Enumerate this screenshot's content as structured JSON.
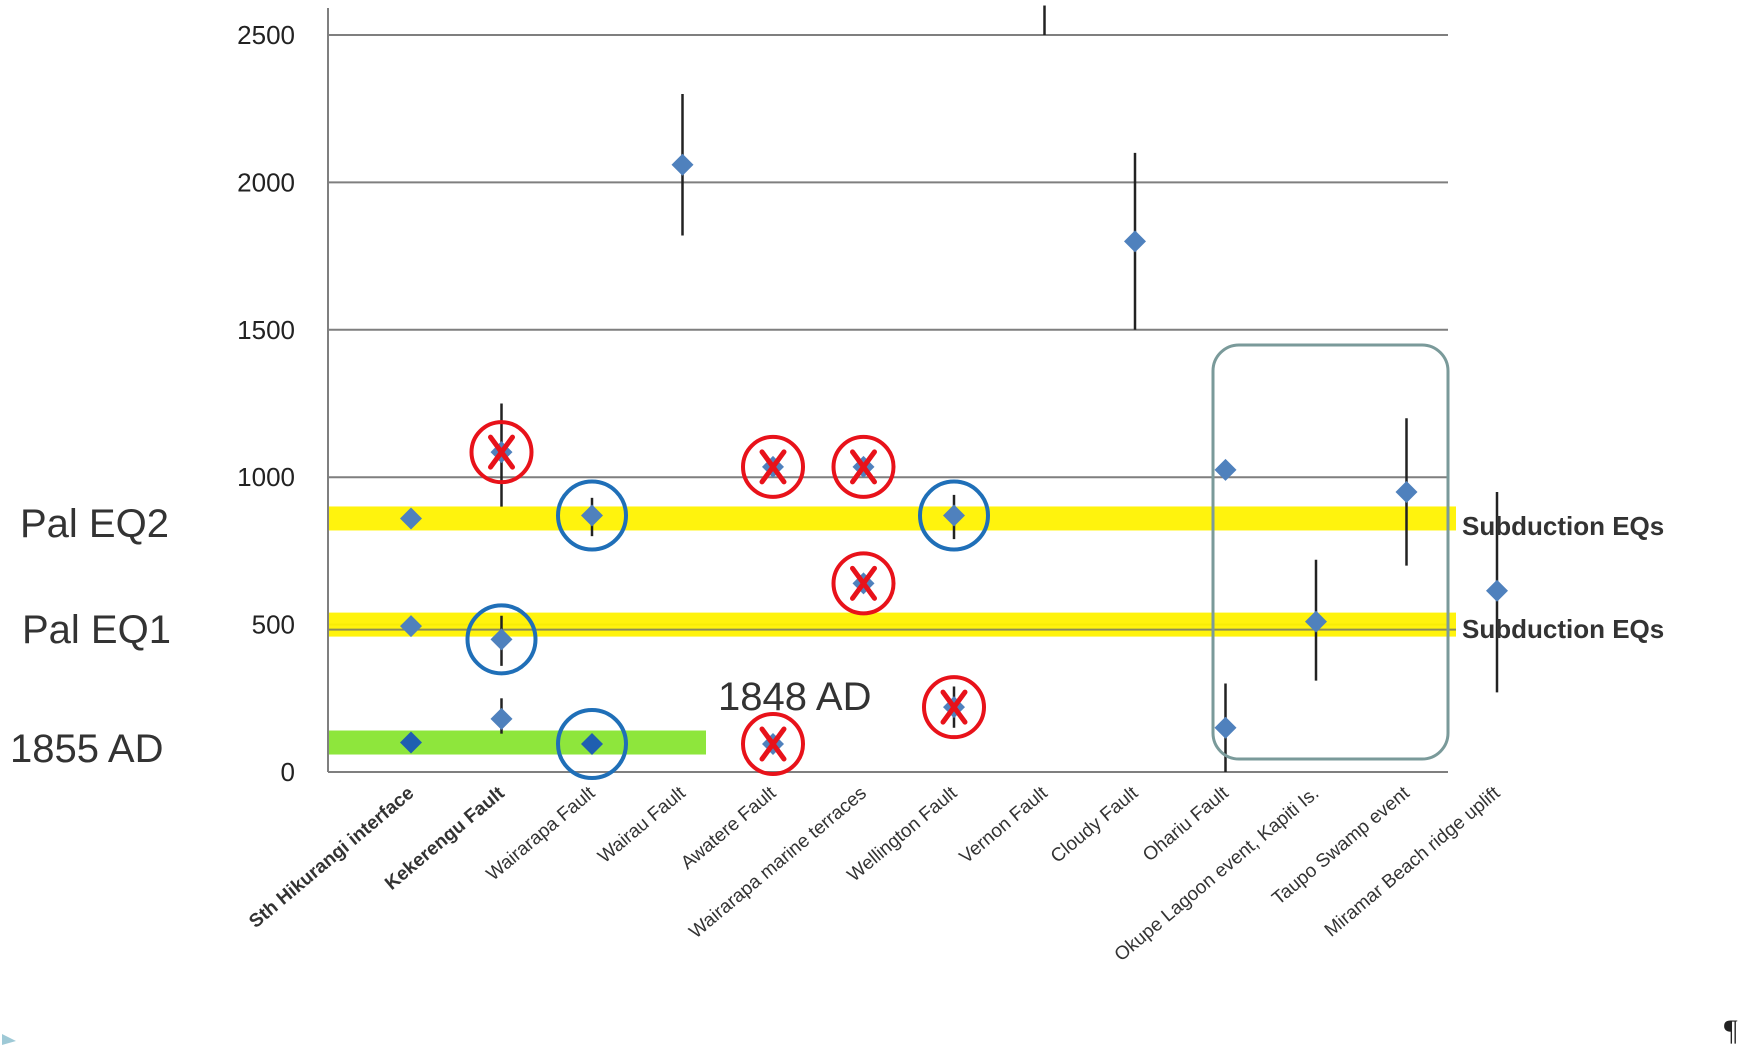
{
  "chart_data": {
    "type": "scatter",
    "ylim": [
      0,
      2600
    ],
    "y_ticks": [
      "0",
      "500",
      "1000",
      "1500",
      "2000",
      "2500"
    ],
    "y_tick_values": [
      0,
      500,
      1000,
      1500,
      2000,
      2500
    ],
    "categories": [
      "Sth Hikurangi interface",
      "Kekerengu Fault",
      "Wairarapa Fault",
      "Wairau Fault",
      "Awatere Fault",
      "Wairarapa marine terraces",
      "Wellington Fault",
      "Vernon Fault",
      "Cloudy Fault",
      "Ohariu Fault",
      "Okupe Lagoon event, Kapiti Is.",
      "Taupo Swamp event",
      "Miramar Beach ridge uplift"
    ],
    "bold_categories": [
      "Sth Hikurangi interface",
      "Kekerengu Fault"
    ],
    "points": [
      {
        "category": 0,
        "y": 860
      },
      {
        "category": 0,
        "y": 495
      },
      {
        "category": 0,
        "y": 100,
        "style": "dark"
      },
      {
        "category": 1,
        "y": 1085,
        "err": [
          900,
          1250
        ],
        "mark": "x"
      },
      {
        "category": 1,
        "y": 450,
        "err": [
          360,
          530
        ],
        "mark": "circle"
      },
      {
        "category": 1,
        "y": 180,
        "err": [
          130,
          250
        ]
      },
      {
        "category": 2,
        "y": 870,
        "err": [
          800,
          930
        ],
        "mark": "circle"
      },
      {
        "category": 2,
        "y": 95,
        "style": "dark",
        "mark": "circle"
      },
      {
        "category": 3,
        "y": 2060,
        "err": [
          1820,
          2300
        ]
      },
      {
        "category": 4,
        "y": 1035,
        "mark": "x"
      },
      {
        "category": 4,
        "y": 95,
        "mark": "x"
      },
      {
        "category": 5,
        "y": 1035,
        "mark": "x"
      },
      {
        "category": 5,
        "y": 640,
        "mark": "x"
      },
      {
        "category": 6,
        "y": 870,
        "err": [
          790,
          940
        ],
        "mark": "circle"
      },
      {
        "category": 6,
        "y": 220,
        "err": [
          150,
          290
        ],
        "mark": "x"
      },
      {
        "category": 7,
        "y": null,
        "err": [
          2500,
          2600
        ]
      },
      {
        "category": 8,
        "y": 1800,
        "err": [
          1500,
          2100
        ]
      },
      {
        "category": 9,
        "y": 1025
      },
      {
        "category": 9,
        "y": 150,
        "err": [
          0,
          300
        ]
      },
      {
        "category": 10,
        "y": 510,
        "err": [
          310,
          720
        ]
      },
      {
        "category": 11,
        "y": 950,
        "err": [
          700,
          1200
        ]
      },
      {
        "category": 12,
        "y": 615,
        "err": [
          270,
          950
        ]
      }
    ],
    "bands": [
      {
        "y": 860,
        "color": "#fff200",
        "label": "Subduction EQs",
        "side_label": "Pal EQ2"
      },
      {
        "y": 500,
        "color": "#fff200",
        "label": "Subduction EQs",
        "side_label": "Pal EQ1"
      },
      {
        "y": 100,
        "color": "#8ee63c",
        "label": "",
        "side_label": "1855 AD"
      }
    ],
    "annotations": [
      "1848 AD"
    ],
    "colors": {
      "marker": "#4f81bd",
      "marker_dark": "#1f5fb0",
      "cross": "#e8121a",
      "circle": "#1f6fb8",
      "box": "#7a9a9a",
      "grid": "#7f7f7f"
    }
  },
  "labels": {
    "pal_eq2": "Pal EQ2",
    "pal_eq1": "Pal EQ1",
    "ad_1855": "1855 AD",
    "ad_1848": "1848 AD",
    "subduction_1": "Subduction EQs",
    "subduction_2": "Subduction EQs",
    "pilcrow": "¶"
  },
  "icons": {
    "rejected": "x-mark-icon",
    "accepted": "circle-mark-icon",
    "slide_marker": "triangle-icon"
  }
}
